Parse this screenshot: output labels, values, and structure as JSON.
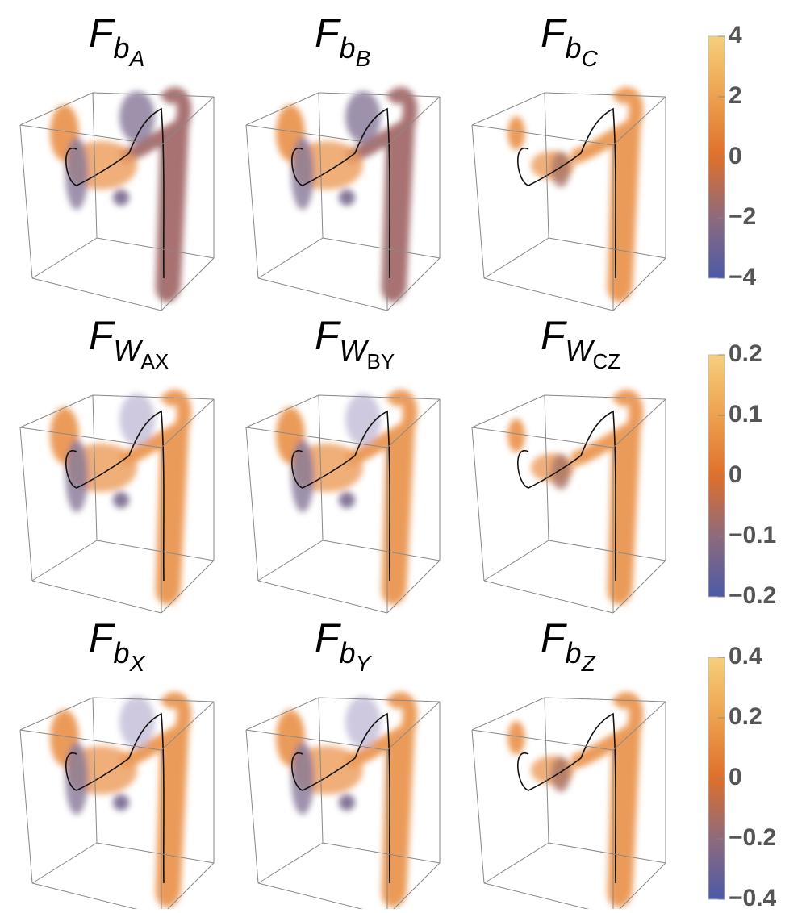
{
  "rows": [
    {
      "panels": [
        {
          "main": "F",
          "sub": "b",
          "subsub": "A"
        },
        {
          "main": "F",
          "sub": "b",
          "subsub": "B"
        },
        {
          "main": "F",
          "sub": "b",
          "subsub": "C"
        }
      ],
      "colorbar": {
        "ticks": [
          "4",
          "2",
          "0",
          "−2",
          "−4"
        ]
      }
    },
    {
      "panels": [
        {
          "main": "F",
          "sub": "W",
          "subsub": "AX"
        },
        {
          "main": "F",
          "sub": "W",
          "subsub": "BY"
        },
        {
          "main": "F",
          "sub": "W",
          "subsub": "CZ"
        }
      ],
      "colorbar": {
        "ticks": [
          "0.2",
          "0.1",
          "0",
          "−0.1",
          "−0.2"
        ]
      }
    },
    {
      "panels": [
        {
          "main": "F",
          "sub": "b",
          "subsub": "X"
        },
        {
          "main": "F",
          "sub": "b",
          "subsub": "Y"
        },
        {
          "main": "F",
          "sub": "b",
          "subsub": "Z"
        }
      ],
      "colorbar": {
        "ticks": [
          "0.4",
          "0.2",
          "0",
          "−0.2",
          "−0.4"
        ]
      }
    }
  ]
}
